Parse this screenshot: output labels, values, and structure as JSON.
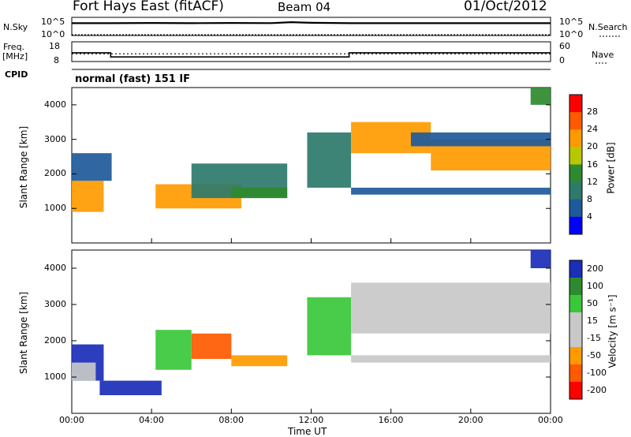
{
  "header": {
    "station": "Fort Hays East (fitACF)",
    "beam": "Beam 04",
    "date": "01/Oct/2012"
  },
  "top_panels": {
    "nsky_label": "N.Sky",
    "nsky_ticks": [
      "10^5",
      "10^0"
    ],
    "nsearch_label": "N.Search",
    "nsearch_ticks": [
      "10^5",
      "10^0"
    ],
    "freq_label": "Freq.",
    "freq_unit": "[MHz]",
    "freq_ticks": [
      "18",
      "8"
    ],
    "nave_label": "Nave",
    "nave_ticks": [
      "60",
      "0"
    ],
    "cpid_label": "CPID",
    "cpid_value": "normal (fast) 151 IF"
  },
  "chart_data": [
    {
      "type": "line",
      "name": "N.Sky / N.Search",
      "x_range_hours": [
        0,
        24
      ],
      "y_scale": "log",
      "ylim": [
        1,
        100000
      ],
      "series": [
        {
          "name": "N.Sky",
          "x": [
            0,
            2,
            4,
            6,
            8,
            10,
            11,
            12,
            14,
            16,
            18,
            20,
            22,
            24
          ],
          "y": [
            3000,
            3000,
            3500,
            3000,
            3500,
            3200,
            6000,
            4000,
            3000,
            3000,
            3000,
            3000,
            3000,
            3000
          ]
        },
        {
          "name": "N.Search",
          "x": [
            0,
            24
          ],
          "y": [
            1,
            1
          ]
        }
      ]
    },
    {
      "type": "line",
      "name": "Freq / Nave",
      "x_range_hours": [
        0,
        24
      ],
      "series": [
        {
          "name": "Freq.",
          "units": "MHz",
          "x": [
            0,
            1.95,
            1.95,
            13.9,
            13.9,
            24
          ],
          "y": [
            12.2,
            12.2,
            10,
            10,
            12.2,
            12.2
          ]
        },
        {
          "name": "Nave",
          "x": [
            0,
            24
          ],
          "y": [
            22,
            22
          ]
        }
      ]
    },
    {
      "type": "heatmap",
      "name": "Power",
      "xlabel": "Time UT",
      "ylabel": "Slant Range [km]",
      "x_ticks": [
        "00:00",
        "04:00",
        "08:00",
        "12:00",
        "16:00",
        "20:00",
        "00:00"
      ],
      "y_ticks": [
        "1000",
        "2000",
        "3000",
        "4000"
      ],
      "ylim": [
        0,
        4500
      ],
      "colorbar_label": "Power [dB]",
      "colorbar_ticks": [
        "28",
        "24",
        "20",
        "16",
        "12",
        "8",
        "4"
      ],
      "colorbar_colors": [
        "#ff0000",
        "#ff5a00",
        "#ff9a00",
        "#b8c800",
        "#2e8a2e",
        "#2e7a6a",
        "#1e5a9a",
        "#0000ff"
      ],
      "regions": [
        {
          "t0": 0.0,
          "t1": 1.6,
          "r0": 900,
          "r1": 1800,
          "value": 22
        },
        {
          "t0": 0.0,
          "t1": 2.0,
          "r0": 1800,
          "r1": 2600,
          "value": 6
        },
        {
          "t0": 4.2,
          "t1": 8.5,
          "r0": 1000,
          "r1": 1700,
          "value": 20
        },
        {
          "t0": 6.0,
          "t1": 10.8,
          "r0": 1300,
          "r1": 2300,
          "value": 8
        },
        {
          "t0": 8.0,
          "t1": 10.8,
          "r0": 1300,
          "r1": 1600,
          "value": 12
        },
        {
          "t0": 11.8,
          "t1": 14.0,
          "r0": 1600,
          "r1": 3200,
          "value": 8
        },
        {
          "t0": 14.0,
          "t1": 18.0,
          "r0": 2600,
          "r1": 3500,
          "value": 20
        },
        {
          "t0": 18.0,
          "t1": 24.0,
          "r0": 2100,
          "r1": 3000,
          "value": 22
        },
        {
          "t0": 17.0,
          "t1": 24.0,
          "r0": 2800,
          "r1": 3200,
          "value": 6
        },
        {
          "t0": 14.0,
          "t1": 24.0,
          "r0": 1400,
          "r1": 1600,
          "value": 4
        },
        {
          "t0": 23.0,
          "t1": 24.0,
          "r0": 4000,
          "r1": 4500,
          "value": 12
        }
      ]
    },
    {
      "type": "heatmap",
      "name": "Velocity",
      "xlabel": "Time UT",
      "ylabel": "Slant Range [km]",
      "x_ticks": [
        "00:00",
        "04:00",
        "08:00",
        "12:00",
        "16:00",
        "20:00",
        "00:00"
      ],
      "y_ticks": [
        "1000",
        "2000",
        "3000",
        "4000"
      ],
      "ylim": [
        0,
        4500
      ],
      "colorbar_label": "Velocity [m s⁻¹]",
      "colorbar_ticks": [
        "200",
        "100",
        "50",
        "15",
        "-15",
        "-50",
        "-100",
        "-200"
      ],
      "colorbar_colors": [
        "#1a2eb8",
        "#2e8a2e",
        "#3ac83a",
        "#c8c8c8",
        "#c8c8c8",
        "#ff9a00",
        "#ff5a00",
        "#ff0000"
      ],
      "regions": [
        {
          "t0": 0.0,
          "t1": 1.6,
          "r0": 900,
          "r1": 1900,
          "value": 150
        },
        {
          "t0": 0.0,
          "t1": 1.2,
          "r0": 900,
          "r1": 1400,
          "value": 0
        },
        {
          "t0": 1.4,
          "t1": 4.5,
          "r0": 500,
          "r1": 900,
          "value": 150
        },
        {
          "t0": 4.2,
          "t1": 6.0,
          "r0": 1200,
          "r1": 2300,
          "value": 60
        },
        {
          "t0": 6.0,
          "t1": 8.0,
          "r0": 1500,
          "r1": 2200,
          "value": -150
        },
        {
          "t0": 8.0,
          "t1": 10.8,
          "r0": 1300,
          "r1": 1600,
          "value": -60
        },
        {
          "t0": 11.8,
          "t1": 14.0,
          "r0": 1600,
          "r1": 3200,
          "value": 60
        },
        {
          "t0": 14.0,
          "t1": 24.0,
          "r0": 2200,
          "r1": 3600,
          "value": 0
        },
        {
          "t0": 14.0,
          "t1": 24.0,
          "r0": 1400,
          "r1": 1600,
          "value": 0
        },
        {
          "t0": 23.0,
          "t1": 24.0,
          "r0": 4000,
          "r1": 4500,
          "value": 150
        }
      ]
    }
  ]
}
